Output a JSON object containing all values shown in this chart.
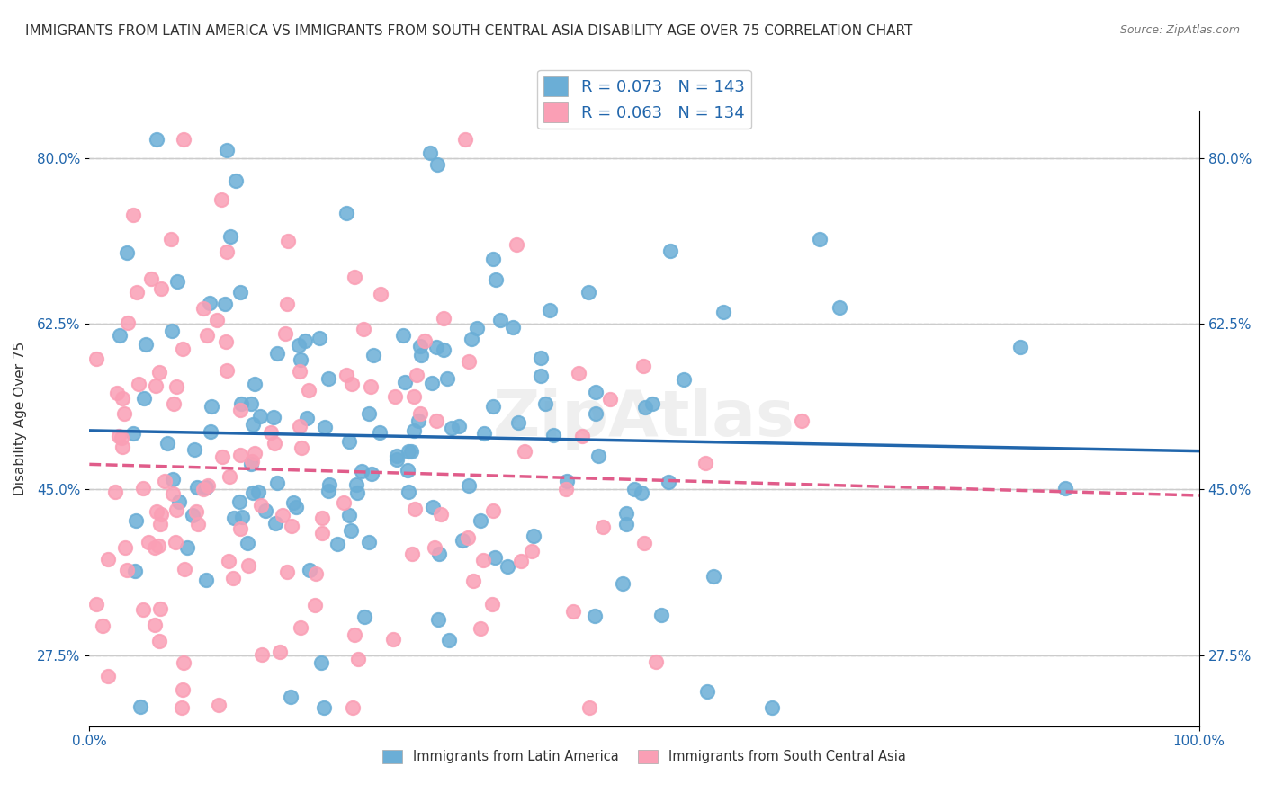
{
  "title": "IMMIGRANTS FROM LATIN AMERICA VS IMMIGRANTS FROM SOUTH CENTRAL ASIA DISABILITY AGE OVER 75 CORRELATION CHART",
  "source": "Source: ZipAtlas.com",
  "xlabel": "",
  "ylabel": "Disability Age Over 75",
  "xlim": [
    0.0,
    1.0
  ],
  "ylim": [
    0.2,
    0.85
  ],
  "xtick_labels": [
    "0.0%",
    "100.0%"
  ],
  "ytick_labels": [
    "27.5%",
    "45.0%",
    "62.5%",
    "80.0%"
  ],
  "ytick_values": [
    0.275,
    0.45,
    0.625,
    0.8
  ],
  "legend1_R": "0.073",
  "legend1_N": "143",
  "legend2_R": "0.063",
  "legend2_N": "134",
  "color_blue": "#6baed6",
  "color_pink": "#fa9fb5",
  "line_color_blue": "#2166ac",
  "line_color_pink": "#e05c8a",
  "watermark": "ZipAtlas",
  "background_color": "#ffffff",
  "grid_color": "#cccccc",
  "title_fontsize": 11,
  "axis_label_fontsize": 11,
  "tick_fontsize": 11,
  "legend_fontsize": 13,
  "seed_blue": 42,
  "seed_pink": 99,
  "n_blue": 143,
  "n_pink": 134,
  "r_blue": 0.073,
  "r_pink": 0.063
}
